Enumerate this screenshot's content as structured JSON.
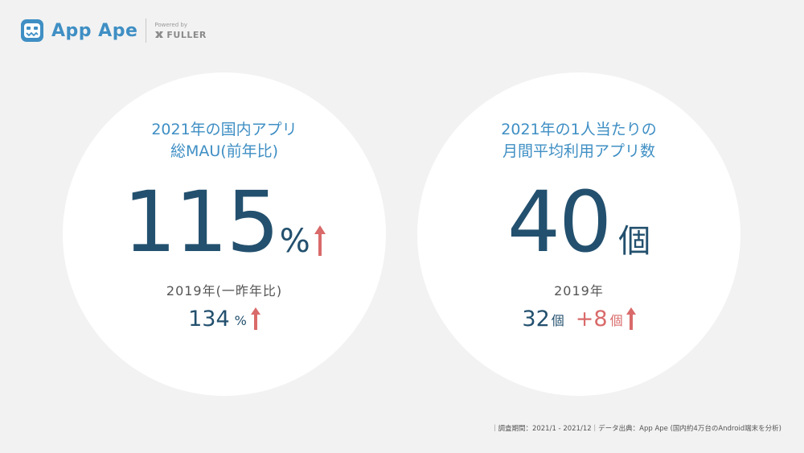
{
  "header": {
    "brand": "App Ape",
    "powered_by": "Powered by",
    "partner": "FULLER"
  },
  "left_stat": {
    "title_line1": "2021年の国内アプリ",
    "title_line2": "総MAU(前年比)",
    "value": "115",
    "unit": "%",
    "compare_label": "2019年(一昨年比)",
    "compare_value": "134",
    "compare_unit": "%"
  },
  "right_stat": {
    "title_line1": "2021年の1人当たりの",
    "title_line2": "月間平均利用アプリ数",
    "value": "40",
    "unit": "個",
    "compare_label": "2019年",
    "compare_value": "32",
    "compare_unit": "個",
    "diff_value": "+8",
    "diff_unit": "個"
  },
  "footer": {
    "note": "｜調査期間：2021/1 - 2021/12｜データ出典：App Ape (国内約4万台のAndroid端末を分析)"
  },
  "colors": {
    "brand_blue": "#3f8fc4",
    "number_navy": "#23506e",
    "up_arrow_red": "#d96a6a",
    "background": "#f2f2f2"
  },
  "icons": {
    "logo": "robot-face-icon",
    "partner": "fuller-mark-icon",
    "trend": "up-arrow-icon"
  }
}
